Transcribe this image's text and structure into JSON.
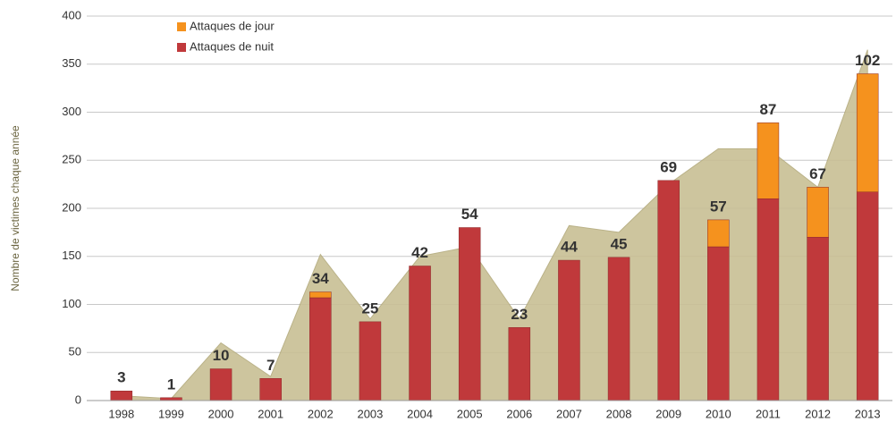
{
  "chart_data": {
    "type": "stacked_bar_area",
    "y_axis_label": "Nombre de victimes chaque année",
    "categories": [
      "1998",
      "1999",
      "2000",
      "2001",
      "2002",
      "2003",
      "2004",
      "2005",
      "2006",
      "2007",
      "2008",
      "2009",
      "2010",
      "2011",
      "2012",
      "2013"
    ],
    "series": [
      {
        "name": "Attaques de nuit",
        "color": "#c0393b",
        "values": [
          10,
          3,
          33,
          23,
          107,
          82,
          140,
          180,
          76,
          146,
          149,
          229,
          160,
          210,
          170,
          217
        ]
      },
      {
        "name": "Attaques de jour",
        "color": "#f5921e",
        "values": [
          0,
          0,
          0,
          0,
          6,
          0,
          0,
          0,
          0,
          0,
          0,
          0,
          28,
          79,
          52,
          123
        ]
      }
    ],
    "area": {
      "color": "#c8bf94",
      "values": [
        5,
        2,
        60,
        25,
        152,
        85,
        150,
        160,
        85,
        182,
        175,
        225,
        262,
        262,
        222,
        365
      ]
    },
    "annotations": [
      3,
      1,
      10,
      7,
      34,
      25,
      42,
      54,
      23,
      44,
      45,
      69,
      57,
      87,
      67,
      102
    ],
    "annotation_color": "#9b2d2d",
    "ylim": [
      0,
      400
    ],
    "yticks": [
      0,
      50,
      100,
      150,
      200,
      250,
      300,
      350,
      400
    ],
    "grid": true
  }
}
